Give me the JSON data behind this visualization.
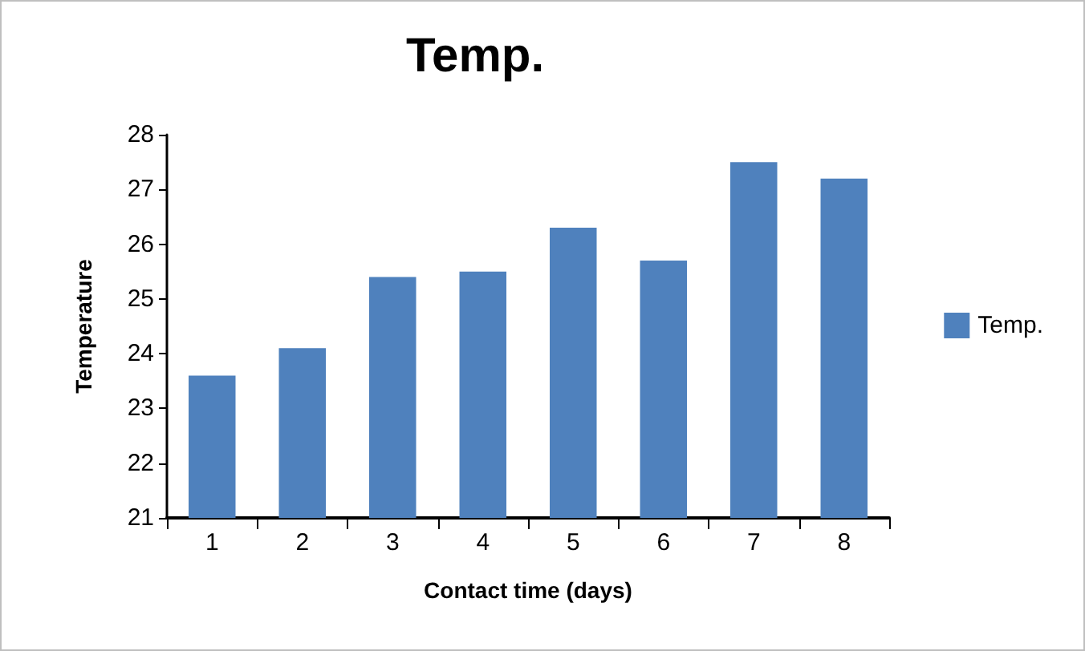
{
  "chart_data": {
    "type": "bar",
    "title": "Temp.",
    "xlabel": "Contact time (days)",
    "ylabel": "Temperature",
    "categories": [
      "1",
      "2",
      "3",
      "4",
      "5",
      "6",
      "7",
      "8"
    ],
    "series": [
      {
        "name": "Temp.",
        "color": "#4f81bd",
        "values": [
          23.6,
          24.1,
          25.4,
          25.5,
          26.3,
          25.7,
          27.5,
          27.2
        ]
      }
    ],
    "ylim": [
      21,
      28
    ],
    "yticks": [
      21,
      22,
      23,
      24,
      25,
      26,
      27,
      28
    ],
    "grid": false,
    "legend": "right"
  }
}
